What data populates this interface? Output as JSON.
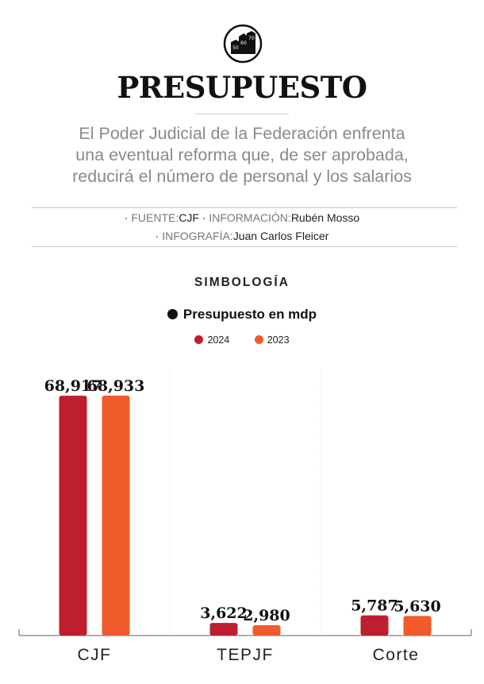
{
  "header": {
    "logo_icon": "budget-buildings-icon",
    "title": "PRESUPUESTO",
    "subtitle_lines": [
      "El Poder Judicial de la Federación enfrenta",
      "una eventual reforma que, de ser aprobada,",
      "reducirá el número de personal y los salarios"
    ]
  },
  "credits": {
    "line1": {
      "sep1": "· ",
      "source_label": "FUENTE:",
      "source_value": "CJF",
      "sep2": " · ",
      "info_label": "INFORMACIÓN:",
      "info_value": "Rubén Mosso"
    },
    "line2": {
      "sep1": "· ",
      "graphic_label": "INFOGRAFÍA:",
      "graphic_value": "Juan Carlos Fleicer"
    }
  },
  "legend": {
    "heading": "SIMBOLOGÍA",
    "metric": "Presupuesto en mdp",
    "items": [
      {
        "label": "2024",
        "color": "#be1e2d"
      },
      {
        "label": "2023",
        "color": "#f15a2b"
      }
    ]
  },
  "chart_data": {
    "type": "bar",
    "categories": [
      "CJF",
      "TEPJF",
      "Corte"
    ],
    "series": [
      {
        "name": "2024",
        "color": "#be1e2d",
        "values": [
          68917,
          3622,
          5787
        ],
        "labels": [
          "68,917",
          "3,622",
          "5,787"
        ]
      },
      {
        "name": "2023",
        "color": "#f15a2b",
        "values": [
          68933,
          2980,
          5630
        ],
        "labels": [
          "68,933",
          "2,980",
          "5,630"
        ]
      }
    ],
    "title": "",
    "xlabel": "",
    "ylabel": "Presupuesto en mdp",
    "ylim": [
      0,
      68933
    ],
    "grid": "vertical dotted separators"
  }
}
